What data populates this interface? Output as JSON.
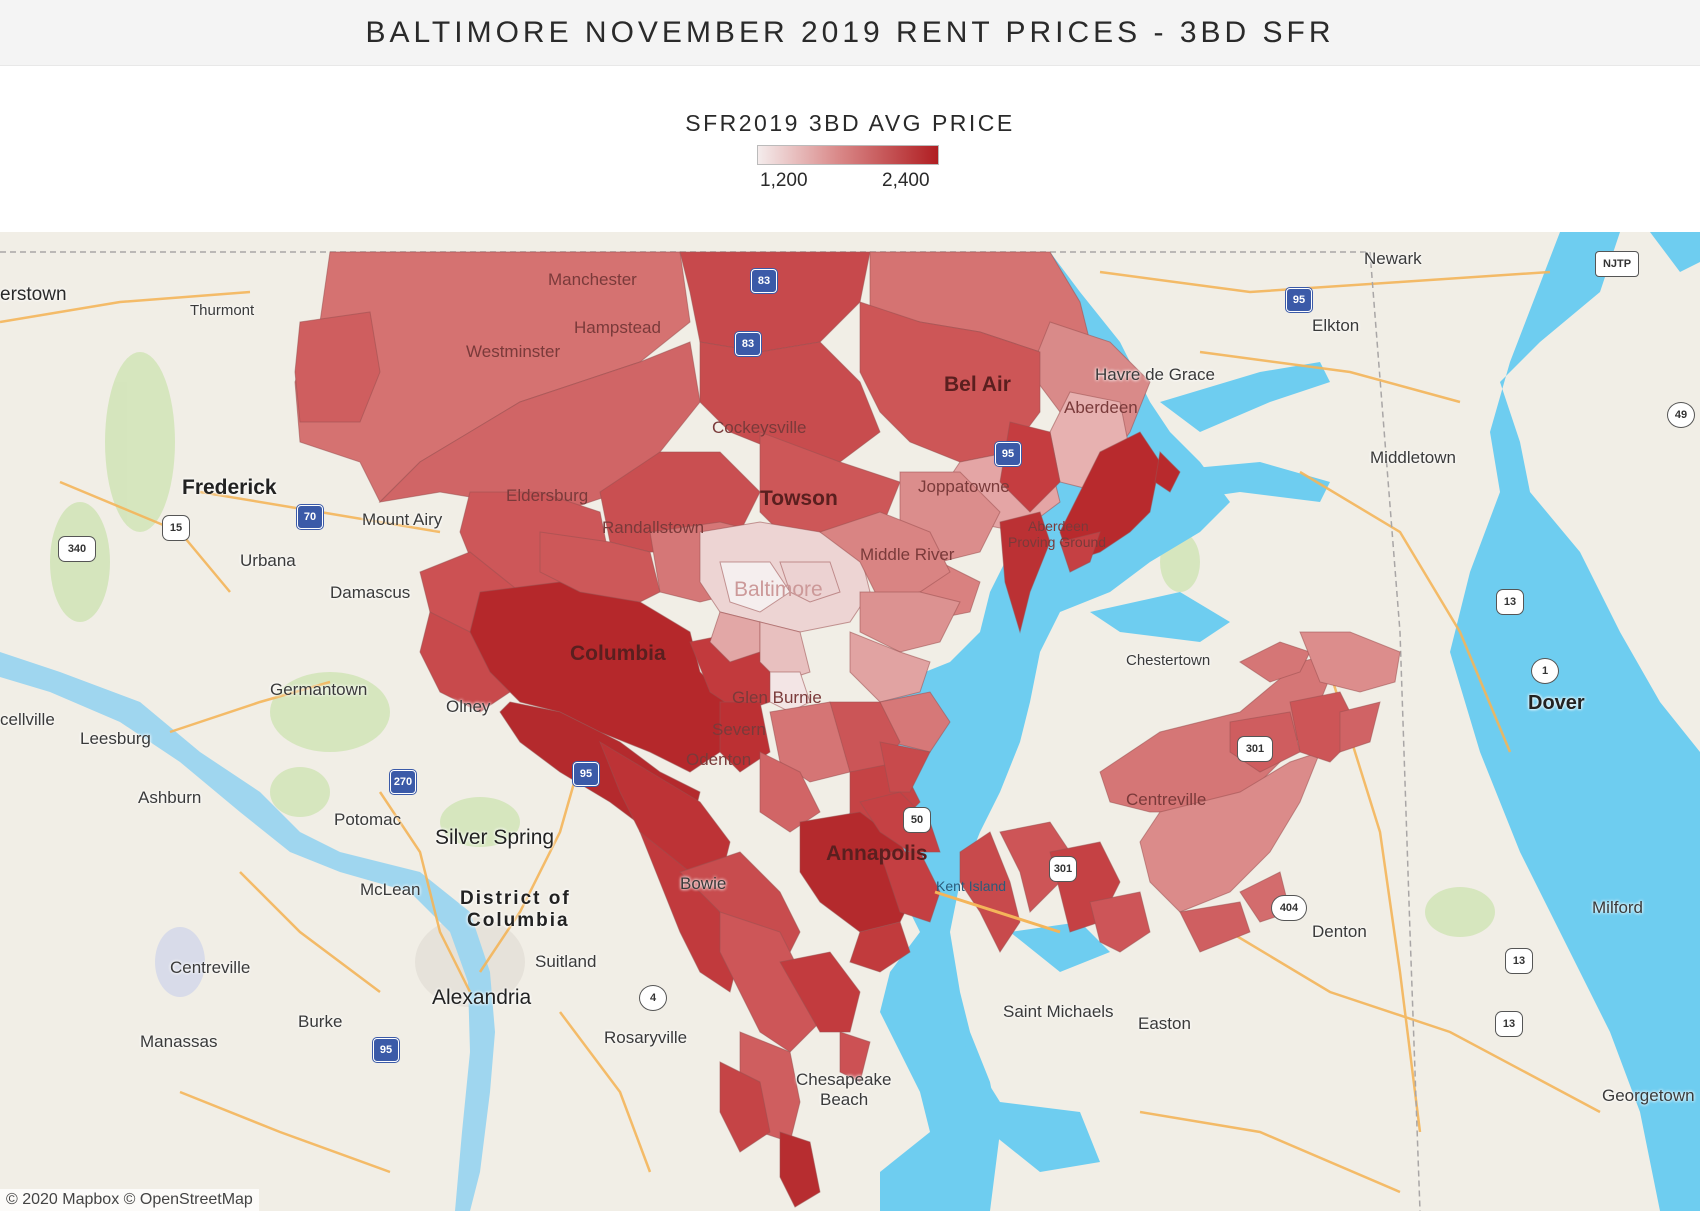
{
  "title": "BALTIMORE NOVEMBER 2019 RENT PRICES - 3BD SFR",
  "legend": {
    "title": "SFR2019 3BD AVG PRICE",
    "min_label": "1,200",
    "max_label": "2,400",
    "min_color": "#f4ecec",
    "max_color": "#b01e22"
  },
  "map": {
    "places": {
      "erstown": "erstown",
      "thurmont": "Thurmont",
      "frederick": "Frederick",
      "mount_airy": "Mount Airy",
      "urbana": "Urbana",
      "damascus": "Damascus",
      "germantown": "Germantown",
      "olney": "Olney",
      "cellville": "cellville",
      "leesburg": "Leesburg",
      "ashburn": "Ashburn",
      "potomac": "Potomac",
      "silver_spring": "Silver Spring",
      "mclean": "McLean",
      "district_1": "District of",
      "district_2": "Columbia",
      "centreville_va": "Centreville",
      "suitland": "Suitland",
      "alexandria": "Alexandria",
      "burke": "Burke",
      "manassas": "Manassas",
      "rosaryville": "Rosaryville",
      "bowie": "Bowie",
      "manchester": "Manchester",
      "hampstead": "Hampstead",
      "westminster": "Westminster",
      "cockeysville": "Cockeysville",
      "bel_air": "Bel Air",
      "havre_de_grace": "Havre de Grace",
      "aberdeen": "Aberdeen",
      "joppatowne": "Joppatowne",
      "towson": "Towson",
      "eldersburg": "Eldersburg",
      "randallstown": "Randallstown",
      "middle_river": "Middle River",
      "aberdeen_pg_1": "Aberdeen",
      "aberdeen_pg_2": "Proving Ground",
      "baltimore": "Baltimore",
      "columbia": "Columbia",
      "glen_burnie": "Glen Burnie",
      "severn": "Severn",
      "odenton": "Odenton",
      "annapolis": "Annapolis",
      "kent_island": "Kent Island",
      "chestertown": "Chestertown",
      "centreville_md": "Centreville",
      "newark": "Newark",
      "elkton": "Elkton",
      "middletown": "Middletown",
      "dover": "Dover",
      "denton": "Denton",
      "milford": "Milford",
      "saint_michaels": "Saint Michaels",
      "easton": "Easton",
      "chesapeake_beach_1": "Chesapeake",
      "chesapeake_beach_2": "Beach",
      "georgetown": "Georgetown"
    },
    "shields": {
      "i70": "70",
      "i270": "270",
      "i95_sw": "95",
      "i95_dc": "95",
      "i95_ne": "95",
      "i83_top": "83",
      "i83_mid": "83",
      "i95_bel": "95",
      "us15": "15",
      "us340": "340",
      "us301": "301",
      "us50": "50",
      "us13_a": "13",
      "us13_b": "13",
      "us13_c": "13",
      "md4": "4",
      "md404": "404",
      "de1": "1",
      "de49": "49",
      "njtp": "NJTP",
      "us301_kent": "301"
    },
    "attribution": "© 2020 Mapbox © OpenStreetMap"
  }
}
